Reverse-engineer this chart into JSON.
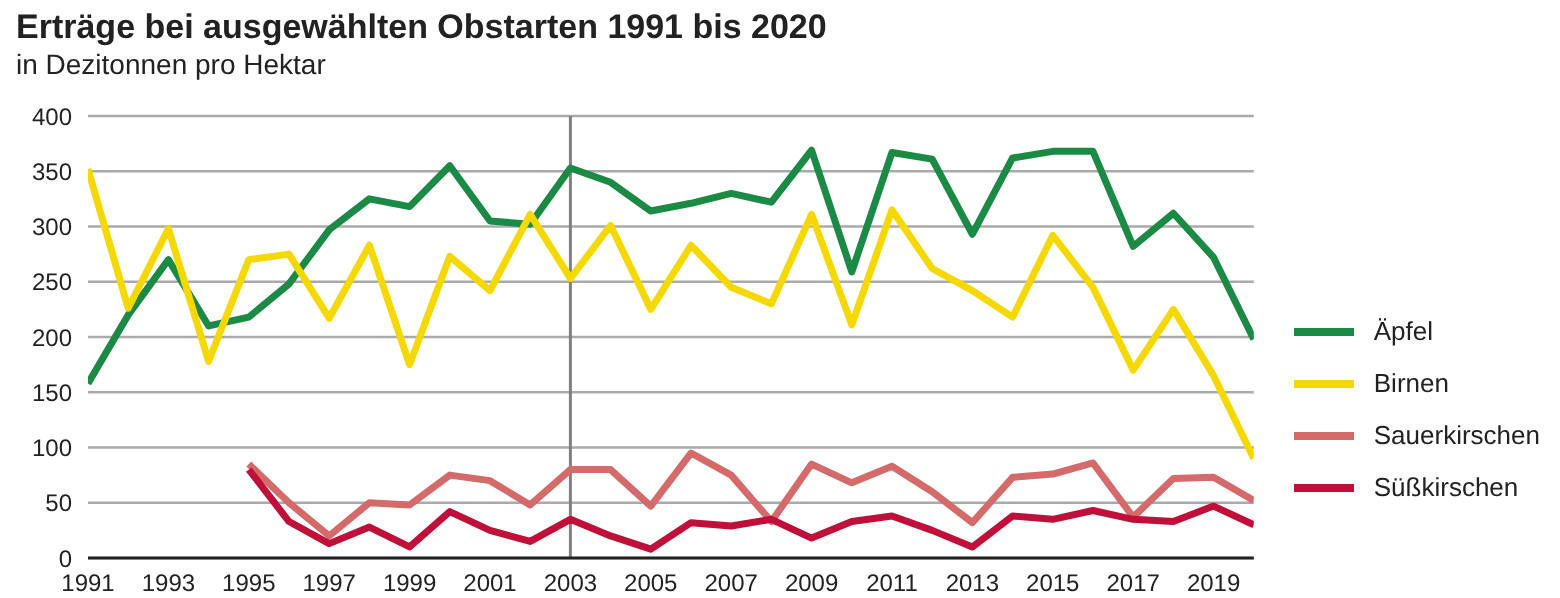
{
  "chart_data": {
    "type": "line",
    "title": "Erträge bei ausgewählten Obstarten 1991 bis 2020",
    "subtitle": "in Dezitonnen pro Hektar",
    "x": [
      1991,
      1992,
      1993,
      1994,
      1995,
      1996,
      1997,
      1998,
      1999,
      2000,
      2001,
      2002,
      2003,
      2004,
      2005,
      2006,
      2007,
      2008,
      2009,
      2010,
      2011,
      2012,
      2013,
      2014,
      2015,
      2016,
      2017,
      2018,
      2019,
      2020
    ],
    "series": [
      {
        "name": "Äpfel",
        "color": "#1a8a44",
        "values": [
          158,
          220,
          270,
          210,
          218,
          248,
          297,
          325,
          318,
          355,
          305,
          302,
          353,
          340,
          314,
          321,
          330,
          322,
          369,
          259,
          367,
          361,
          293,
          362,
          368,
          368,
          282,
          312,
          272,
          198
        ]
      },
      {
        "name": "Birnen",
        "color": "#f5d800",
        "values": [
          352,
          226,
          298,
          178,
          270,
          275,
          217,
          283,
          175,
          273,
          242,
          311,
          253,
          301,
          225,
          283,
          245,
          230,
          311,
          211,
          315,
          262,
          242,
          218,
          292,
          245,
          170,
          225,
          165,
          90
        ]
      },
      {
        "name": "Sauerkirschen",
        "color": "#d46a6a",
        "values": [
          null,
          null,
          null,
          null,
          85,
          50,
          20,
          50,
          48,
          75,
          70,
          48,
          80,
          80,
          47,
          95,
          75,
          33,
          85,
          68,
          83,
          60,
          32,
          73,
          76,
          86,
          37,
          72,
          73,
          52
        ]
      },
      {
        "name": "Süßkirschen",
        "color": "#c0103a",
        "values": [
          null,
          null,
          null,
          null,
          80,
          33,
          13,
          28,
          10,
          42,
          25,
          15,
          35,
          20,
          8,
          32,
          29,
          35,
          18,
          33,
          38,
          25,
          10,
          38,
          35,
          43,
          35,
          33,
          47,
          30
        ]
      }
    ],
    "xlim": [
      1991,
      2020
    ],
    "xticks": [
      1991,
      1993,
      1995,
      1997,
      1999,
      2001,
      2003,
      2005,
      2007,
      2009,
      2011,
      2013,
      2015,
      2017,
      2019
    ],
    "ylim": [
      0,
      400
    ],
    "yticks": [
      0,
      50,
      100,
      150,
      200,
      250,
      300,
      350,
      400
    ],
    "ref_lines": [
      {
        "axis": "x",
        "value": 2003,
        "color": "#808080"
      }
    ],
    "grid": "y",
    "legend": "right",
    "marker": "none",
    "line_style": "solid"
  }
}
